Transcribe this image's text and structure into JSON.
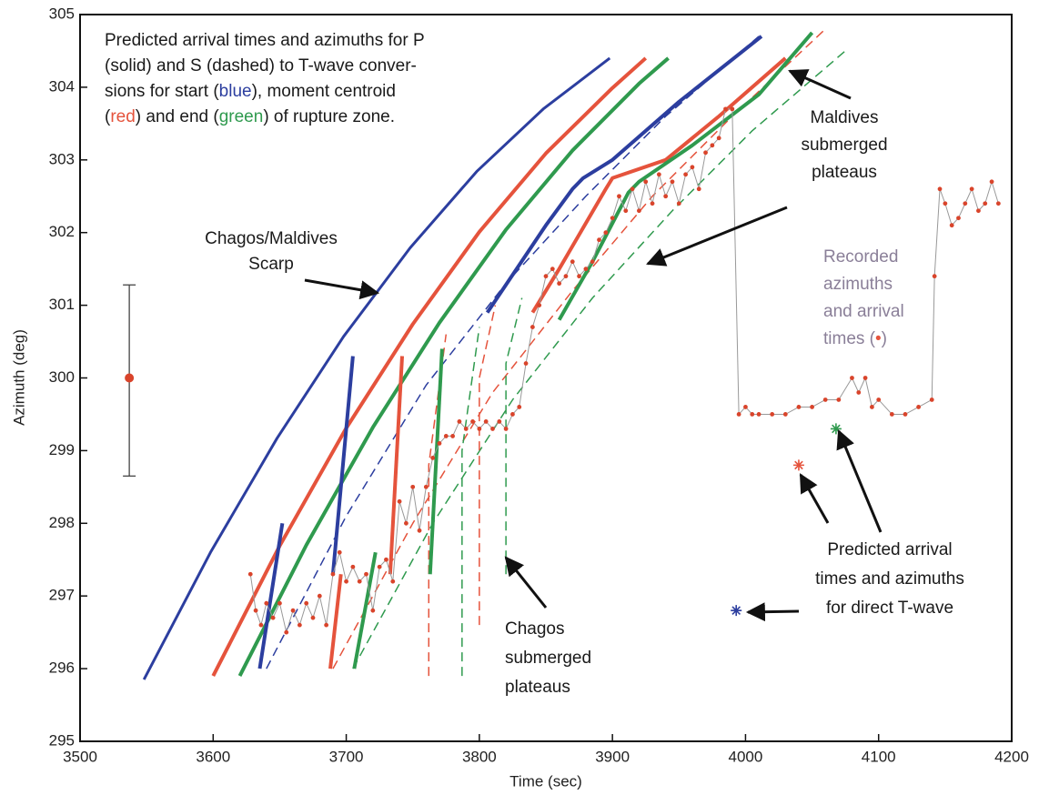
{
  "chart_data": {
    "type": "line",
    "x_label": "Time (sec)",
    "y_label": "Azimuth (deg)",
    "xlim": [
      3500,
      4200
    ],
    "ylim": [
      295,
      305
    ],
    "xticks": [
      3500,
      3600,
      3700,
      3800,
      3900,
      4000,
      4100,
      4200
    ],
    "yticks": [
      295,
      296,
      297,
      298,
      299,
      300,
      301,
      302,
      303,
      304,
      305
    ],
    "series": [
      {
        "color": "#2c3e9f",
        "style": "solid",
        "width": 3,
        "x": [
          3548,
          3598,
          3648,
          3698,
          3748,
          3798,
          3848,
          3898
        ],
        "values": [
          295.85,
          297.6,
          299.17,
          300.57,
          301.79,
          302.84,
          303.7,
          304.4
        ]
      },
      {
        "color": "#e5533c",
        "style": "solid",
        "width": 4,
        "x": [
          3600,
          3650,
          3700,
          3750,
          3800,
          3850,
          3900,
          3925
        ],
        "values": [
          295.9,
          297.69,
          299.31,
          300.74,
          302.01,
          303.09,
          303.99,
          304.4
        ]
      },
      {
        "color": "#2f9a4e",
        "style": "solid",
        "width": 4,
        "x": [
          3620,
          3670,
          3720,
          3770,
          3820,
          3870,
          3920,
          3942
        ],
        "values": [
          295.9,
          297.7,
          299.32,
          300.76,
          302.04,
          303.13,
          304.05,
          304.4
        ]
      },
      {
        "color": "#2c3e9f",
        "style": "dashed",
        "width": 1.5,
        "x": [
          3640,
          3700,
          3760,
          3820,
          3880,
          3940,
          4010
        ],
        "values": [
          296.0,
          298.1,
          299.9,
          301.3,
          302.5,
          303.6,
          304.7
        ]
      },
      {
        "color": "#e5533c",
        "style": "dashed",
        "width": 1.5,
        "x": [
          3690,
          3750,
          3810,
          3870,
          3930,
          3990,
          4060
        ],
        "values": [
          296.0,
          298.0,
          299.8,
          301.2,
          302.5,
          303.6,
          304.8
        ]
      },
      {
        "color": "#2f9a4e",
        "style": "dashed",
        "width": 1.5,
        "x": [
          3705,
          3765,
          3825,
          3885,
          3945,
          4005,
          4075
        ],
        "values": [
          296.0,
          298.0,
          299.7,
          301.1,
          302.3,
          303.4,
          304.5
        ]
      },
      {
        "color": "#e5533c",
        "style": "dashed",
        "width": 1.5,
        "x": [
          3762,
          3762,
          3775
        ],
        "values": [
          295.9,
          298.8,
          300.6
        ]
      },
      {
        "color": "#2f9a4e",
        "style": "dashed",
        "width": 1.5,
        "x": [
          3787,
          3787,
          3800
        ],
        "values": [
          295.9,
          299.0,
          300.7
        ]
      },
      {
        "color": "#e5533c",
        "style": "dashed",
        "width": 1.5,
        "x": [
          3800,
          3800,
          3812
        ],
        "values": [
          296.6,
          300.0,
          301.0
        ]
      },
      {
        "color": "#2f9a4e",
        "style": "dashed",
        "width": 1.5,
        "x": [
          3820,
          3820,
          3832
        ],
        "values": [
          297.3,
          300.2,
          301.1
        ]
      },
      {
        "color": "#2c3e9f",
        "style": "solid",
        "width": 4,
        "x": [
          3635,
          3652
        ],
        "values": [
          296.0,
          298.0
        ]
      },
      {
        "color": "#2c3e9f",
        "style": "solid",
        "width": 4,
        "x": [
          3690,
          3695,
          3705
        ],
        "values": [
          297.3,
          298.3,
          300.3
        ]
      },
      {
        "color": "#e5533c",
        "style": "solid",
        "width": 4,
        "x": [
          3688,
          3696
        ],
        "values": [
          296.0,
          297.3
        ]
      },
      {
        "color": "#2f9a4e",
        "style": "solid",
        "width": 4,
        "x": [
          3706,
          3722
        ],
        "values": [
          296.0,
          297.6
        ]
      },
      {
        "color": "#e5533c",
        "style": "solid",
        "width": 4,
        "x": [
          3733,
          3742
        ],
        "values": [
          297.3,
          300.3
        ]
      },
      {
        "color": "#2f9a4e",
        "style": "solid",
        "width": 4,
        "x": [
          3763,
          3772
        ],
        "values": [
          297.3,
          300.4
        ]
      },
      {
        "color": "#2c3e9f",
        "style": "solid",
        "width": 4,
        "x": [
          3806,
          3850,
          3870,
          3878,
          3900,
          3950,
          4012
        ],
        "values": [
          300.9,
          302.1,
          302.6,
          302.75,
          303.0,
          303.8,
          304.7
        ]
      },
      {
        "color": "#e5533c",
        "style": "solid",
        "width": 4,
        "x": [
          3840,
          3860,
          3895,
          3900,
          3940,
          3980,
          4030
        ],
        "values": [
          300.9,
          301.5,
          302.6,
          302.75,
          303.0,
          303.6,
          304.4
        ]
      },
      {
        "color": "#2f9a4e",
        "style": "solid",
        "width": 4,
        "x": [
          3860,
          3885,
          3912,
          3920,
          3960,
          4010,
          4050
        ],
        "values": [
          300.8,
          301.6,
          302.55,
          302.7,
          303.2,
          303.9,
          304.75
        ]
      },
      {
        "color": "#999999",
        "marker_color": "#d9442b",
        "style": "solid",
        "width": 1,
        "markers": true,
        "x": [
          3628,
          3632,
          3636,
          3640,
          3645,
          3650,
          3655,
          3660,
          3665,
          3670,
          3675,
          3680,
          3685,
          3690,
          3695,
          3700,
          3705,
          3710,
          3715,
          3720,
          3725,
          3730,
          3735,
          3740,
          3745,
          3750,
          3755,
          3760,
          3765,
          3770,
          3775,
          3780,
          3785,
          3790,
          3795,
          3800,
          3805,
          3810,
          3815,
          3820,
          3825,
          3830,
          3835,
          3840,
          3845,
          3850,
          3855,
          3860,
          3865,
          3870,
          3875,
          3880,
          3885,
          3890,
          3895,
          3900,
          3905,
          3910,
          3915,
          3920,
          3925,
          3930,
          3935,
          3940,
          3945,
          3950,
          3955,
          3960,
          3965,
          3970,
          3975,
          3980,
          3985,
          3990,
          3995,
          4000,
          4005,
          4010,
          4020,
          4030,
          4040,
          4050,
          4060,
          4070,
          4080,
          4085,
          4090,
          4095,
          4100,
          4110,
          4120,
          4130,
          4140,
          4142,
          4146,
          4150,
          4155,
          4160,
          4165,
          4170,
          4175,
          4180,
          4185,
          4190
        ],
        "values": [
          297.3,
          296.8,
          296.6,
          296.9,
          296.7,
          296.9,
          296.5,
          296.8,
          296.6,
          296.9,
          296.7,
          297.0,
          296.6,
          297.3,
          297.6,
          297.2,
          297.4,
          297.2,
          297.3,
          296.8,
          297.4,
          297.5,
          297.2,
          298.3,
          298.0,
          298.5,
          297.9,
          298.5,
          298.9,
          299.1,
          299.2,
          299.2,
          299.4,
          299.3,
          299.4,
          299.3,
          299.4,
          299.3,
          299.4,
          299.3,
          299.5,
          299.6,
          300.2,
          300.7,
          301.0,
          301.4,
          301.5,
          301.3,
          301.4,
          301.6,
          301.4,
          301.5,
          301.6,
          301.9,
          302.0,
          302.2,
          302.5,
          302.3,
          302.6,
          302.3,
          302.7,
          302.4,
          302.8,
          302.5,
          302.7,
          302.4,
          302.8,
          302.9,
          302.6,
          303.1,
          303.2,
          303.3,
          303.7,
          303.7,
          299.5,
          299.6,
          299.5,
          299.5,
          299.5,
          299.5,
          299.6,
          299.6,
          299.7,
          299.7,
          300.0,
          299.8,
          300.0,
          299.6,
          299.7,
          299.5,
          299.5,
          299.6,
          299.7,
          301.4,
          302.6,
          302.4,
          302.1,
          302.2,
          302.4,
          302.6,
          302.3,
          302.4,
          302.7,
          302.4
        ]
      }
    ],
    "error_bar": {
      "x": 3537,
      "value": 300,
      "lower": 298.65,
      "upper": 301.28,
      "color": "#d9442b"
    },
    "points": [
      {
        "x": 4040,
        "value": 298.8,
        "color": "#e5533c"
      },
      {
        "x": 4068,
        "value": 299.3,
        "color": "#2f9a4e"
      },
      {
        "x": 3993,
        "value": 296.8,
        "color": "#2c3e9f"
      }
    ],
    "annotations": [
      {
        "lines": [
          [
            {
              "text": "Predicted arrival times and azimuths for P"
            }
          ],
          [
            {
              "text": "(solid) and S (dashed) to T-wave conver-"
            }
          ],
          [
            {
              "text": "sions  for start ("
            },
            {
              "text": "blue",
              "color": "#2c3e9f"
            },
            {
              "text": "), moment centroid"
            }
          ],
          [
            {
              "text": "("
            },
            {
              "text": "red",
              "color": "#e5533c"
            },
            {
              "text": ") and end ("
            },
            {
              "text": "green",
              "color": "#2f9a4e"
            },
            {
              "text": ") of rupture zone."
            }
          ]
        ]
      },
      {
        "lines": [
          [
            {
              "text": "Chagos/Maldives"
            }
          ],
          [
            {
              "text": "Scarp"
            }
          ]
        ]
      },
      {
        "lines": [
          [
            {
              "text": "Maldives"
            }
          ],
          [
            {
              "text": "submerged"
            }
          ],
          [
            {
              "text": "plateaus"
            }
          ]
        ]
      },
      {
        "lines": [
          [
            {
              "text": "Recorded",
              "color": "#8a7f98"
            }
          ],
          [
            {
              "text": "azimuths",
              "color": "#8a7f98"
            }
          ],
          [
            {
              "text": "and arrival",
              "color": "#8a7f98"
            }
          ],
          [
            {
              "text": "times (",
              "color": "#8a7f98"
            },
            {
              "text": "•",
              "color": "#e5533c"
            },
            {
              "text": ")",
              "color": "#8a7f98"
            }
          ]
        ]
      },
      {
        "lines": [
          [
            {
              "text": "Predicted arrival"
            }
          ],
          [
            {
              "text": "times and azimuths"
            }
          ],
          [
            {
              "text": "for direct T-wave"
            }
          ]
        ]
      },
      {
        "lines": [
          [
            {
              "text": "Chagos"
            }
          ],
          [
            {
              "text": "submerged"
            }
          ],
          [
            {
              "text": "plateaus"
            }
          ]
        ]
      }
    ]
  }
}
